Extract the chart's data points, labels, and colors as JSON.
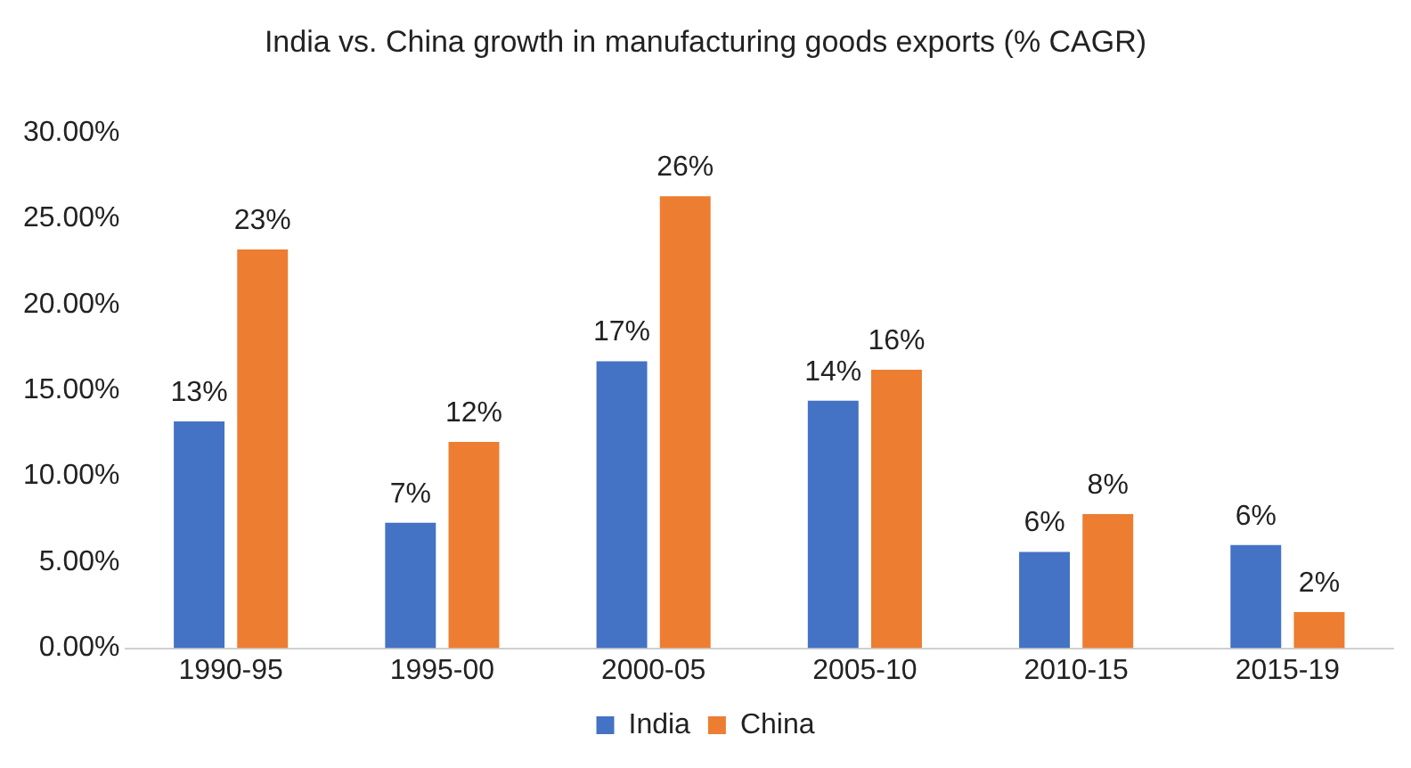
{
  "chart_data": {
    "type": "bar",
    "title": "India vs. China growth in manufacturing goods exports (% CAGR)",
    "categories": [
      "1990-95",
      "1995-00",
      "2000-05",
      "2005-10",
      "2010-15",
      "2015-19"
    ],
    "series": [
      {
        "name": "India",
        "color": "#4472c4",
        "values": [
          13.2,
          7.3,
          16.7,
          14.4,
          5.6,
          6.0
        ],
        "value_labels": [
          "13%",
          "7%",
          "17%",
          "14%",
          "6%",
          "6%"
        ]
      },
      {
        "name": "China",
        "color": "#ed7d31",
        "values": [
          23.2,
          12.0,
          26.3,
          16.2,
          7.8,
          2.1
        ],
        "value_labels": [
          "23%",
          "12%",
          "26%",
          "16%",
          "8%",
          "2%"
        ]
      }
    ],
    "ylim": [
      0,
      30
    ],
    "yticks": [
      {
        "value": 0,
        "label": "0.00%"
      },
      {
        "value": 5,
        "label": "5.00%"
      },
      {
        "value": 10,
        "label": "10.00%"
      },
      {
        "value": 15,
        "label": "15.00%"
      },
      {
        "value": 20,
        "label": "20.00%"
      },
      {
        "value": 25,
        "label": "25.00%"
      },
      {
        "value": 30,
        "label": "30.00%"
      }
    ],
    "grid": false,
    "legend": "bottom"
  }
}
